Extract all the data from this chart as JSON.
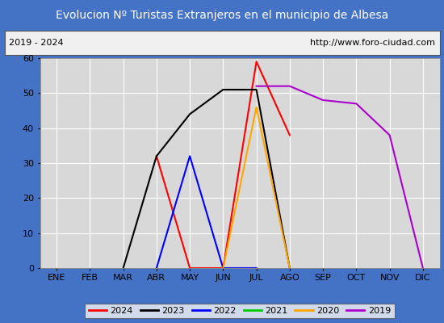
{
  "title": "Evolucion Nº Turistas Extranjeros en el municipio de Albesa",
  "title_color": "#ffffff",
  "title_bg_color": "#4472c4",
  "subtitle_left": "2019 - 2024",
  "subtitle_right": "http://www.foro-ciudad.com",
  "months": [
    "ENE",
    "FEB",
    "MAR",
    "ABR",
    "MAY",
    "JUN",
    "JUL",
    "AGO",
    "SEP",
    "OCT",
    "NOV",
    "DIC"
  ],
  "ylim": [
    0,
    60
  ],
  "yticks": [
    0,
    10,
    20,
    30,
    40,
    50,
    60
  ],
  "figure_bg_color": "#4472c4",
  "plot_bg_color": "#d8d8d8",
  "grid_color": "#ffffff",
  "subtitle_bg": "#f0f0f0",
  "series_data": {
    "2024": [
      null,
      null,
      null,
      32,
      0,
      0,
      59,
      38,
      null,
      null,
      null,
      null
    ],
    "2023": [
      null,
      null,
      0,
      32,
      44,
      51,
      51,
      0,
      null,
      null,
      null,
      null
    ],
    "2022": [
      null,
      null,
      null,
      0,
      32,
      0,
      0,
      null,
      null,
      null,
      null,
      null
    ],
    "2021": [
      null,
      null,
      null,
      null,
      null,
      null,
      0,
      null,
      null,
      null,
      null,
      null
    ],
    "2020": [
      null,
      null,
      null,
      null,
      null,
      0,
      46,
      0,
      null,
      null,
      null,
      null
    ],
    "2019": [
      null,
      null,
      null,
      null,
      null,
      null,
      52,
      52,
      48,
      47,
      38,
      0
    ]
  },
  "colors": {
    "2024": "#ff0000",
    "2023": "#000000",
    "2022": "#0000ff",
    "2021": "#00cc00",
    "2020": "#ffa500",
    "2019": "#aa00cc"
  },
  "legend_order": [
    "2024",
    "2023",
    "2022",
    "2021",
    "2020",
    "2019"
  ],
  "linewidth": 1.5,
  "title_fontsize": 10,
  "subtitle_fontsize": 8,
  "tick_fontsize": 8,
  "legend_fontsize": 8
}
